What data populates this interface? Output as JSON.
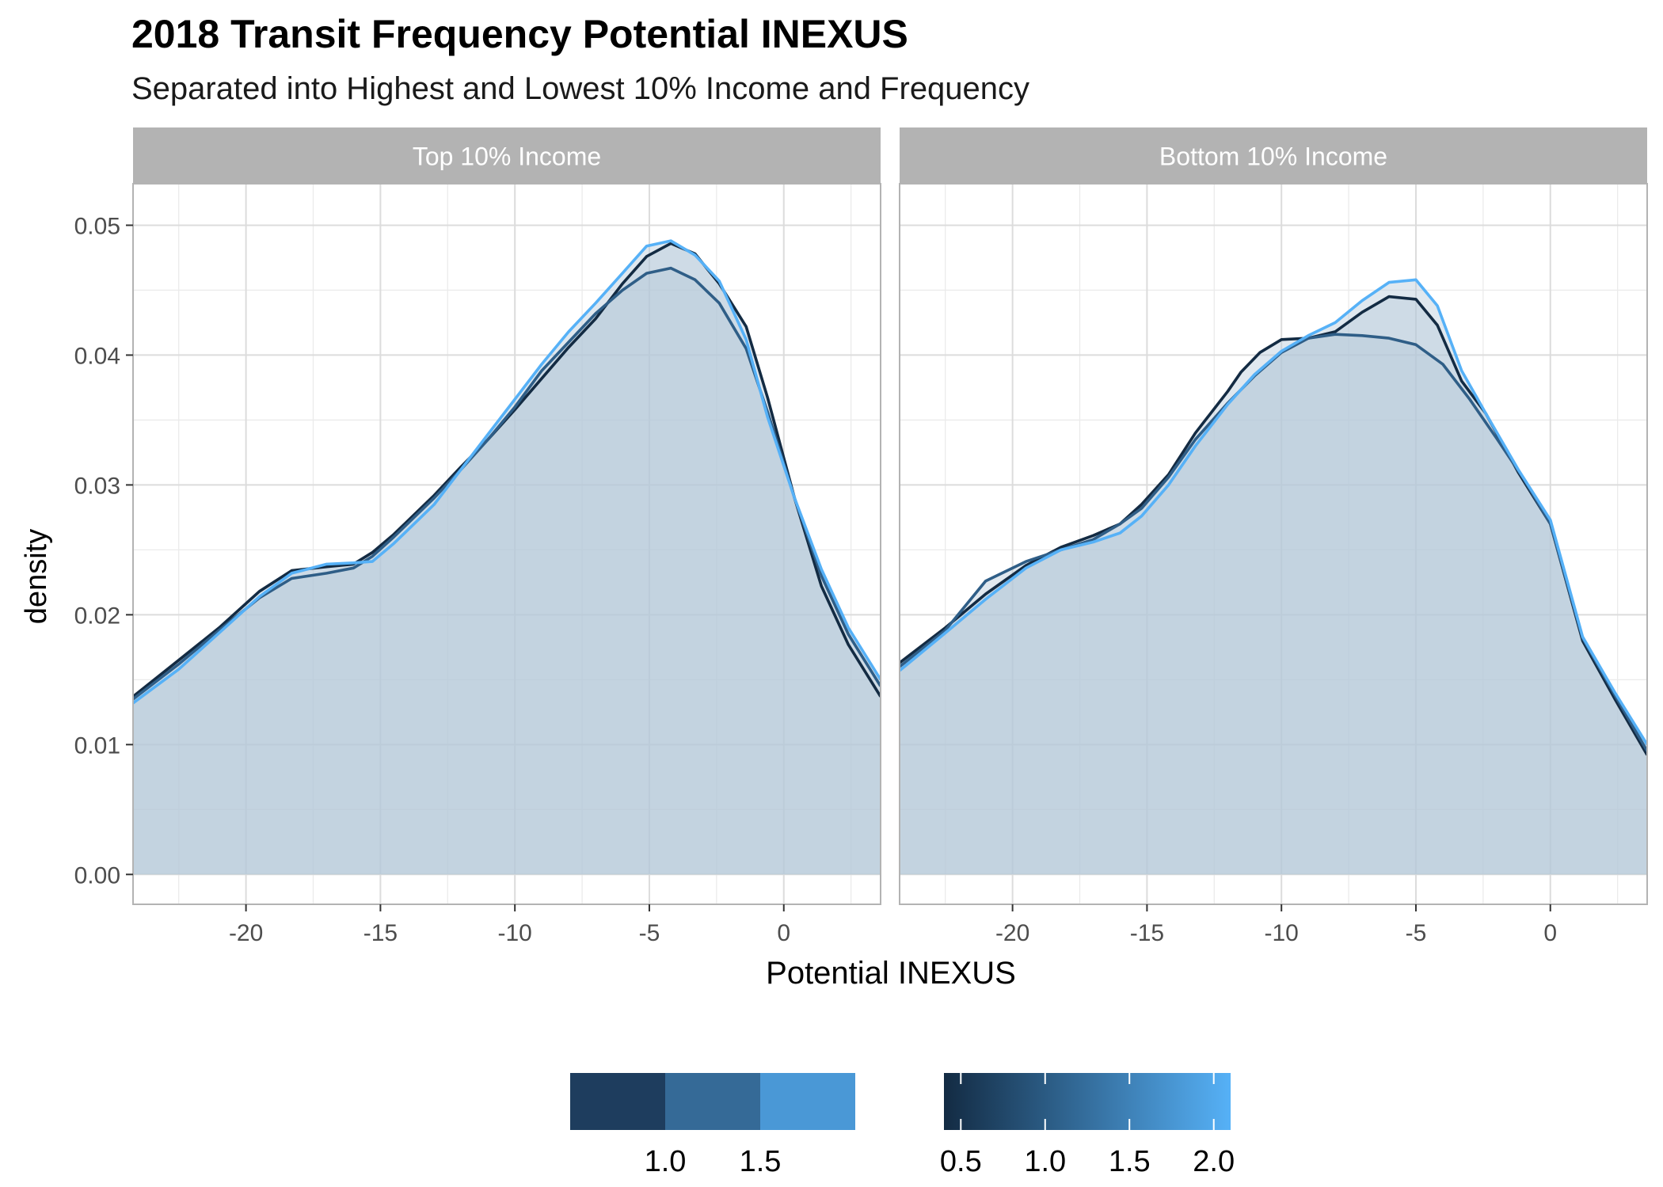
{
  "title": "2018 Transit Frequency Potential INEXUS",
  "subtitle": "Separated into Highest and Lowest 10% Income and Frequency",
  "chart_data": {
    "type": "area",
    "xlabel": "Potential INEXUS",
    "ylabel": "density",
    "xlim": [
      -24.2,
      3.6
    ],
    "ylim": [
      -0.0023,
      0.0532
    ],
    "x_ticks": [
      -20,
      -15,
      -10,
      -5,
      0
    ],
    "x_tick_labels": [
      "-20",
      "-15",
      "-10",
      "-5",
      "0"
    ],
    "y_ticks": [
      0,
      0.01,
      0.02,
      0.03,
      0.04,
      0.05
    ],
    "y_tick_labels": [
      "0.00",
      "0.01",
      "0.02",
      "0.03",
      "0.04",
      "0.05"
    ],
    "grid": true,
    "fill_color": "#B5C8D8",
    "line_colors": [
      "#132B43",
      "#2F5E87",
      "#56B1F7"
    ],
    "panels": [
      {
        "label": "Top 10% Income",
        "series": [
          {
            "color": "#132B43",
            "points": [
              [
                -24.2,
                0.0137
              ],
              [
                -22.5,
                0.0165
              ],
              [
                -21,
                0.019
              ],
              [
                -19.5,
                0.0218
              ],
              [
                -18.3,
                0.0234
              ],
              [
                -17,
                0.0237
              ],
              [
                -16,
                0.0239
              ],
              [
                -15.3,
                0.0248
              ],
              [
                -14.5,
                0.0262
              ],
              [
                -13,
                0.0292
              ],
              [
                -12,
                0.0314
              ],
              [
                -11,
                0.0335
              ],
              [
                -10,
                0.0358
              ],
              [
                -9,
                0.0382
              ],
              [
                -8,
                0.0406
              ],
              [
                -7,
                0.0428
              ],
              [
                -6,
                0.0455
              ],
              [
                -5.1,
                0.0476
              ],
              [
                -4.2,
                0.0486
              ],
              [
                -3.3,
                0.0478
              ],
              [
                -2.4,
                0.0455
              ],
              [
                -1.4,
                0.0422
              ],
              [
                -0.6,
                0.0367
              ],
              [
                0.4,
                0.029
              ],
              [
                1.4,
                0.0222
              ],
              [
                2.4,
                0.0177
              ],
              [
                3.6,
                0.0137
              ]
            ]
          },
          {
            "color": "#2F5E87",
            "points": [
              [
                -24.2,
                0.0135
              ],
              [
                -22.5,
                0.0162
              ],
              [
                -21,
                0.0188
              ],
              [
                -19.5,
                0.0213
              ],
              [
                -18.3,
                0.0228
              ],
              [
                -17,
                0.0232
              ],
              [
                -16,
                0.0236
              ],
              [
                -15.3,
                0.0245
              ],
              [
                -14.5,
                0.026
              ],
              [
                -13,
                0.029
              ],
              [
                -12,
                0.0312
              ],
              [
                -11,
                0.0335
              ],
              [
                -10,
                0.036
              ],
              [
                -9,
                0.0388
              ],
              [
                -8,
                0.041
              ],
              [
                -7,
                0.0432
              ],
              [
                -6,
                0.045
              ],
              [
                -5.1,
                0.0463
              ],
              [
                -4.2,
                0.0467
              ],
              [
                -3.3,
                0.0458
              ],
              [
                -2.4,
                0.044
              ],
              [
                -1.4,
                0.0405
              ],
              [
                -0.6,
                0.0356
              ],
              [
                0.4,
                0.029
              ],
              [
                1.4,
                0.023
              ],
              [
                2.4,
                0.0185
              ],
              [
                3.6,
                0.0145
              ]
            ]
          },
          {
            "color": "#56B1F7",
            "points": [
              [
                -24.2,
                0.0132
              ],
              [
                -22.5,
                0.0158
              ],
              [
                -21,
                0.0186
              ],
              [
                -19.5,
                0.0214
              ],
              [
                -18.3,
                0.0232
              ],
              [
                -17,
                0.0239
              ],
              [
                -16,
                0.024
              ],
              [
                -15.3,
                0.0241
              ],
              [
                -14.5,
                0.0255
              ],
              [
                -13,
                0.0285
              ],
              [
                -12,
                0.0312
              ],
              [
                -11,
                0.0339
              ],
              [
                -10,
                0.0366
              ],
              [
                -9,
                0.0393
              ],
              [
                -8,
                0.0418
              ],
              [
                -7,
                0.044
              ],
              [
                -6,
                0.0463
              ],
              [
                -5.1,
                0.0484
              ],
              [
                -4.2,
                0.0488
              ],
              [
                -3.3,
                0.0477
              ],
              [
                -2.4,
                0.0457
              ],
              [
                -1.4,
                0.0412
              ],
              [
                -0.6,
                0.0352
              ],
              [
                0.4,
                0.029
              ],
              [
                1.4,
                0.0235
              ],
              [
                2.4,
                0.019
              ],
              [
                3.6,
                0.015
              ]
            ]
          }
        ]
      },
      {
        "label": "Bottom 10% Income",
        "series": [
          {
            "color": "#132B43",
            "points": [
              [
                -24.2,
                0.0163
              ],
              [
                -22.5,
                0.019
              ],
              [
                -21,
                0.0216
              ],
              [
                -19.5,
                0.0238
              ],
              [
                -18.2,
                0.0252
              ],
              [
                -17,
                0.0261
              ],
              [
                -16,
                0.027
              ],
              [
                -15.2,
                0.0285
              ],
              [
                -14.2,
                0.0308
              ],
              [
                -13.2,
                0.034
              ],
              [
                -12,
                0.0372
              ],
              [
                -11.5,
                0.0387
              ],
              [
                -10.8,
                0.0402
              ],
              [
                -10,
                0.0412
              ],
              [
                -9,
                0.0413
              ],
              [
                -8,
                0.0418
              ],
              [
                -7,
                0.0433
              ],
              [
                -6,
                0.0445
              ],
              [
                -5,
                0.0443
              ],
              [
                -4.2,
                0.0423
              ],
              [
                -3.3,
                0.038
              ],
              [
                -2.4,
                0.0355
              ],
              [
                -1.2,
                0.031
              ],
              [
                0,
                0.027
              ],
              [
                1.2,
                0.018
              ],
              [
                2.4,
                0.0135
              ],
              [
                3.6,
                0.0092
              ]
            ]
          },
          {
            "color": "#2F5E87",
            "points": [
              [
                -24.2,
                0.016
              ],
              [
                -22.5,
                0.0188
              ],
              [
                -21,
                0.0226
              ],
              [
                -19.5,
                0.0241
              ],
              [
                -18.2,
                0.025
              ],
              [
                -17,
                0.0258
              ],
              [
                -16,
                0.027
              ],
              [
                -15.2,
                0.0282
              ],
              [
                -14.2,
                0.0306
              ],
              [
                -13.2,
                0.0335
              ],
              [
                -12,
                0.0363
              ],
              [
                -11,
                0.0384
              ],
              [
                -10,
                0.0402
              ],
              [
                -9,
                0.0413
              ],
              [
                -8,
                0.0416
              ],
              [
                -7,
                0.0415
              ],
              [
                -6,
                0.0413
              ],
              [
                -5,
                0.0408
              ],
              [
                -4,
                0.0393
              ],
              [
                -3,
                0.0366
              ],
              [
                -2,
                0.0336
              ],
              [
                -1,
                0.0305
              ],
              [
                0,
                0.027
              ],
              [
                1.2,
                0.0182
              ],
              [
                2.4,
                0.0138
              ],
              [
                3.6,
                0.0095
              ]
            ]
          },
          {
            "color": "#56B1F7",
            "points": [
              [
                -24.2,
                0.0157
              ],
              [
                -22.5,
                0.0186
              ],
              [
                -21,
                0.0212
              ],
              [
                -19.5,
                0.0236
              ],
              [
                -18.2,
                0.025
              ],
              [
                -17,
                0.0256
              ],
              [
                -16,
                0.0263
              ],
              [
                -15.2,
                0.0276
              ],
              [
                -14.2,
                0.03
              ],
              [
                -13.2,
                0.033
              ],
              [
                -12,
                0.0362
              ],
              [
                -11,
                0.0385
              ],
              [
                -10,
                0.0403
              ],
              [
                -9,
                0.0415
              ],
              [
                -8,
                0.0425
              ],
              [
                -7,
                0.0442
              ],
              [
                -6,
                0.0456
              ],
              [
                -5,
                0.0458
              ],
              [
                -4.2,
                0.0438
              ],
              [
                -3.3,
                0.0388
              ],
              [
                -2.4,
                0.0355
              ],
              [
                -1.2,
                0.0312
              ],
              [
                0,
                0.0273
              ],
              [
                1.2,
                0.0183
              ],
              [
                2.4,
                0.014
              ],
              [
                3.6,
                0.01
              ]
            ]
          }
        ]
      }
    ],
    "legends": [
      {
        "kind": "discrete",
        "colors": [
          "#1E3D5E",
          "#356A97",
          "#4A98D6"
        ],
        "tick_labels": [
          "1.0",
          "1.5"
        ]
      },
      {
        "kind": "gradient",
        "gradient_from": "#132B43",
        "gradient_to": "#56B1F7",
        "range": [
          0.4,
          2.1
        ],
        "ticks": [
          0.5,
          1.0,
          1.5,
          2.0
        ],
        "tick_labels": [
          "0.5",
          "1.0",
          "1.5",
          "2.0"
        ]
      }
    ]
  }
}
